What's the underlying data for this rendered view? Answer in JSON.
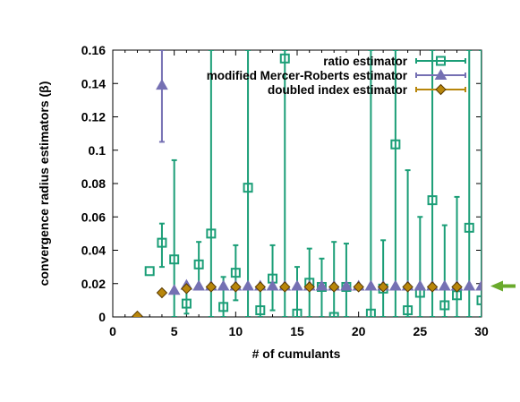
{
  "chart_data": {
    "type": "scatter",
    "xlabel": "# of cumulants",
    "ylabel": "convergence radius estimators (β)",
    "xlim": [
      0,
      30
    ],
    "ylim": [
      0,
      0.16
    ],
    "xticks": [
      0,
      5,
      10,
      15,
      20,
      25,
      30
    ],
    "yticks": [
      0,
      0.02,
      0.04,
      0.06,
      0.08,
      0.1,
      0.12,
      0.14,
      0.16
    ],
    "ytick_labels": [
      "0",
      "0.02",
      "0.04",
      "0.06",
      "0.08",
      "0.1",
      "0.12",
      "0.14",
      "0.16"
    ],
    "grid": false,
    "legend_position": "top-right",
    "reference_arrow": {
      "y": 0.0185,
      "color": "#6aaa2c",
      "side": "right"
    },
    "series": [
      {
        "name": "ratio estimator",
        "marker": "open-square",
        "color": "#1b9e77",
        "points": [
          {
            "x": 3,
            "y": 0.0275,
            "lo": 0.0275,
            "hi": 0.0275
          },
          {
            "x": 4,
            "y": 0.0445,
            "lo": 0.03,
            "hi": 0.056
          },
          {
            "x": 5,
            "y": 0.0345,
            "lo": 0.0,
            "hi": 0.094
          },
          {
            "x": 6,
            "y": 0.008,
            "lo": 0.002,
            "hi": 0.017
          },
          {
            "x": 7,
            "y": 0.0315,
            "lo": 0.017,
            "hi": 0.045
          },
          {
            "x": 8,
            "y": 0.05,
            "lo": 0.0,
            "hi": 0.16
          },
          {
            "x": 9,
            "y": 0.006,
            "lo": 0.0,
            "hi": 0.024
          },
          {
            "x": 10,
            "y": 0.0265,
            "lo": 0.01,
            "hi": 0.043
          },
          {
            "x": 11,
            "y": 0.0775,
            "lo": 0.0,
            "hi": 0.16
          },
          {
            "x": 12,
            "y": 0.004,
            "lo": 0.0,
            "hi": 0.018
          },
          {
            "x": 13,
            "y": 0.023,
            "lo": 0.004,
            "hi": 0.043
          },
          {
            "x": 14,
            "y": 0.155,
            "lo": 0.0,
            "hi": 0.16
          },
          {
            "x": 15,
            "y": 0.002,
            "lo": 0.0,
            "hi": 0.03
          },
          {
            "x": 16,
            "y": 0.0205,
            "lo": 0.0,
            "hi": 0.041
          },
          {
            "x": 17,
            "y": 0.018,
            "lo": 0.0,
            "hi": 0.035
          },
          {
            "x": 18,
            "y": 0.0,
            "lo": 0.0,
            "hi": 0.045
          },
          {
            "x": 19,
            "y": 0.018,
            "lo": 0.0,
            "hi": 0.044
          },
          {
            "x": 21,
            "y": 0.002,
            "lo": 0.0,
            "hi": 0.16
          },
          {
            "x": 22,
            "y": 0.017,
            "lo": 0.0,
            "hi": 0.046
          },
          {
            "x": 23,
            "y": 0.1035,
            "lo": 0.0,
            "hi": 0.16
          },
          {
            "x": 24,
            "y": 0.004,
            "lo": 0.0,
            "hi": 0.088
          },
          {
            "x": 25,
            "y": 0.0145,
            "lo": 0.0,
            "hi": 0.06
          },
          {
            "x": 26,
            "y": 0.07,
            "lo": 0.0,
            "hi": 0.16
          },
          {
            "x": 27,
            "y": 0.007,
            "lo": 0.0,
            "hi": 0.055
          },
          {
            "x": 28,
            "y": 0.013,
            "lo": 0.0,
            "hi": 0.072
          },
          {
            "x": 29,
            "y": 0.0535,
            "lo": 0.0,
            "hi": 0.16
          },
          {
            "x": 30,
            "y": 0.01,
            "lo": 0.0,
            "hi": 0.16
          }
        ]
      },
      {
        "name": "modified Mercer-Roberts estimator",
        "marker": "filled-triangle",
        "color": "#7570b3",
        "points": [
          {
            "x": 4,
            "y": 0.139,
            "lo": 0.105,
            "hi": 0.16
          },
          {
            "x": 5,
            "y": 0.016,
            "lo": 0.016,
            "hi": 0.016
          },
          {
            "x": 6,
            "y": 0.019,
            "lo": 0.019,
            "hi": 0.019
          },
          {
            "x": 7,
            "y": 0.0185,
            "lo": 0.0185,
            "hi": 0.0185
          },
          {
            "x": 8,
            "y": 0.0185,
            "lo": 0.0185,
            "hi": 0.0185
          },
          {
            "x": 9,
            "y": 0.0185,
            "lo": 0.0185,
            "hi": 0.0185
          },
          {
            "x": 10,
            "y": 0.0185,
            "lo": 0.0185,
            "hi": 0.0185
          },
          {
            "x": 11,
            "y": 0.0185,
            "lo": 0.0185,
            "hi": 0.0185
          },
          {
            "x": 12,
            "y": 0.0185,
            "lo": 0.0185,
            "hi": 0.0185
          },
          {
            "x": 13,
            "y": 0.0185,
            "lo": 0.0185,
            "hi": 0.0185
          },
          {
            "x": 14,
            "y": 0.0185,
            "lo": 0.0185,
            "hi": 0.0185
          },
          {
            "x": 15,
            "y": 0.0185,
            "lo": 0.0185,
            "hi": 0.0185
          },
          {
            "x": 16,
            "y": 0.0185,
            "lo": 0.0185,
            "hi": 0.0185
          },
          {
            "x": 17,
            "y": 0.0185,
            "lo": 0.0185,
            "hi": 0.0185
          },
          {
            "x": 18,
            "y": 0.0185,
            "lo": 0.0185,
            "hi": 0.0185
          },
          {
            "x": 19,
            "y": 0.0185,
            "lo": 0.0185,
            "hi": 0.0185
          },
          {
            "x": 20,
            "y": 0.0185,
            "lo": 0.0185,
            "hi": 0.0185
          },
          {
            "x": 21,
            "y": 0.0185,
            "lo": 0.0185,
            "hi": 0.0185
          },
          {
            "x": 22,
            "y": 0.0185,
            "lo": 0.0185,
            "hi": 0.0185
          },
          {
            "x": 23,
            "y": 0.0185,
            "lo": 0.0185,
            "hi": 0.0185
          },
          {
            "x": 24,
            "y": 0.0185,
            "lo": 0.0185,
            "hi": 0.0185
          },
          {
            "x": 25,
            "y": 0.0185,
            "lo": 0.0185,
            "hi": 0.0185
          },
          {
            "x": 26,
            "y": 0.0185,
            "lo": 0.0185,
            "hi": 0.0185
          },
          {
            "x": 27,
            "y": 0.0185,
            "lo": 0.0185,
            "hi": 0.0185
          },
          {
            "x": 28,
            "y": 0.0185,
            "lo": 0.0185,
            "hi": 0.0185
          },
          {
            "x": 29,
            "y": 0.0185,
            "lo": 0.0185,
            "hi": 0.0185
          },
          {
            "x": 30,
            "y": 0.0185,
            "lo": 0.0185,
            "hi": 0.0185
          }
        ]
      },
      {
        "name": "doubled index estimator",
        "marker": "open-diamond",
        "color": "#b8860b",
        "points": [
          {
            "x": 2,
            "y": 0.0005
          },
          {
            "x": 4,
            "y": 0.0145
          },
          {
            "x": 6,
            "y": 0.017
          },
          {
            "x": 8,
            "y": 0.018
          },
          {
            "x": 10,
            "y": 0.018
          },
          {
            "x": 12,
            "y": 0.018
          },
          {
            "x": 14,
            "y": 0.018
          },
          {
            "x": 16,
            "y": 0.018
          },
          {
            "x": 18,
            "y": 0.018
          },
          {
            "x": 20,
            "y": 0.018
          },
          {
            "x": 22,
            "y": 0.018
          },
          {
            "x": 24,
            "y": 0.018
          },
          {
            "x": 26,
            "y": 0.018
          },
          {
            "x": 28,
            "y": 0.018
          }
        ]
      }
    ]
  }
}
